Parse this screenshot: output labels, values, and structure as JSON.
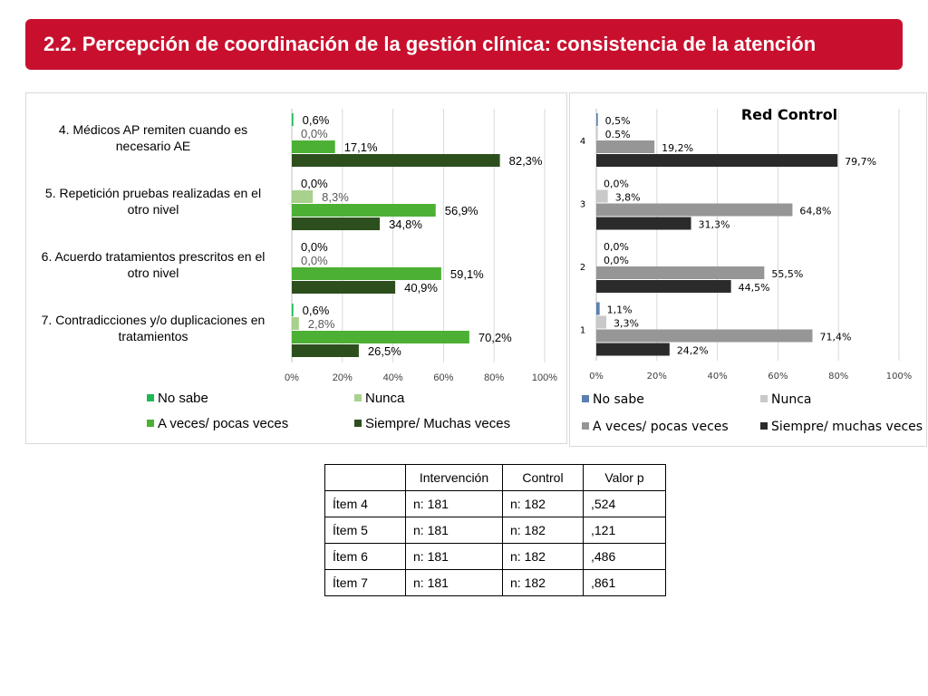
{
  "header": {
    "title": "2.2. Percepción de coordinación de la gestión clínica: consistencia de la atención"
  },
  "chart_data": [
    {
      "type": "bar",
      "orientation": "horizontal",
      "title": "",
      "categories": [
        "4. Médicos AP remiten cuando es necesario AE",
        "5. Repetición pruebas realizadas en el otro nivel",
        "6. Acuerdo tratamientos prescritos en el otro nivel",
        "7. Contradicciones y/o duplicaciones en tratamientos"
      ],
      "category_lines": [
        [
          "4. Médicos AP remiten cuando es",
          "necesario AE"
        ],
        [
          "5. Repetición pruebas realizadas en el",
          "otro nivel"
        ],
        [
          "6. Acuerdo tratamientos prescritos en el",
          "otro nivel"
        ],
        [
          "7. Contradicciones y/o duplicaciones en",
          "tratamientos"
        ]
      ],
      "series": [
        {
          "name": "No sabe",
          "color": "#1db954",
          "values": [
            0.6,
            0.0,
            0.0,
            0.6
          ],
          "labels": [
            "0,6%",
            "0,0%",
            "0,0%",
            "0,6%"
          ]
        },
        {
          "name": "Nunca",
          "color": "#a9d18e",
          "values": [
            0.0,
            8.3,
            0.0,
            2.8
          ],
          "labels": [
            "0,0%",
            "8,3%",
            "0,0%",
            "2,8%"
          ]
        },
        {
          "name": "A veces/ pocas veces",
          "color": "#4cb034",
          "values": [
            17.1,
            56.9,
            59.1,
            70.2
          ],
          "labels": [
            "17,1%",
            "56,9%",
            "59,1%",
            "70,2%"
          ]
        },
        {
          "name": "Siempre/ Muchas veces",
          "color": "#2d4f1e",
          "values": [
            82.3,
            34.8,
            40.9,
            26.5
          ],
          "labels": [
            "82,3%",
            "34,8%",
            "40,9%",
            "26,5%"
          ]
        }
      ],
      "xlim": [
        0,
        100
      ],
      "xticks": [
        "0%",
        "20%",
        "40%",
        "60%",
        "80%",
        "100%"
      ],
      "legend_position": "bottom",
      "grid": true
    },
    {
      "type": "bar",
      "orientation": "horizontal",
      "title": "Red Control",
      "categories": [
        "4",
        "3",
        "2",
        "1"
      ],
      "series": [
        {
          "name": "No sabe",
          "color": "#5b7fae",
          "values": [
            0.5,
            0.0,
            0.0,
            1.1
          ],
          "labels": [
            "0,5%",
            "0,0%",
            "0,0%",
            "1,1%"
          ]
        },
        {
          "name": "Nunca",
          "color": "#c9c9c9",
          "values": [
            0.5,
            3.8,
            0.0,
            3.3
          ],
          "labels": [
            "0.5%",
            "3,8%",
            "0,0%",
            "3,3%"
          ]
        },
        {
          "name": "A veces/ pocas veces",
          "color": "#969696",
          "values": [
            19.2,
            64.8,
            55.5,
            71.4
          ],
          "labels": [
            "19,2%",
            "64,8%",
            "55,5%",
            "71,4%"
          ]
        },
        {
          "name": "Siempre/ muchas veces",
          "color": "#2b2b2b",
          "values": [
            79.7,
            31.3,
            44.5,
            24.2
          ],
          "labels": [
            "79,7%",
            "31,3%",
            "44,5%",
            "24,2%"
          ]
        }
      ],
      "xlim": [
        0,
        100
      ],
      "xticks": [
        "0%",
        "20%",
        "40%",
        "60%",
        "80%",
        "100%"
      ],
      "legend_position": "bottom",
      "grid": true
    }
  ],
  "table": {
    "headers": [
      "",
      "Intervención",
      "Control",
      "Valor p"
    ],
    "rows": [
      [
        "Ítem 4",
        "n: 181",
        "n: 182",
        ",524"
      ],
      [
        "Ítem 5",
        "n: 181",
        "n: 182",
        ",121"
      ],
      [
        "Ítem 6",
        "n: 181",
        "n: 182",
        ",486"
      ],
      [
        "Ítem 7",
        "n: 181",
        "n: 182",
        ",861"
      ]
    ]
  }
}
